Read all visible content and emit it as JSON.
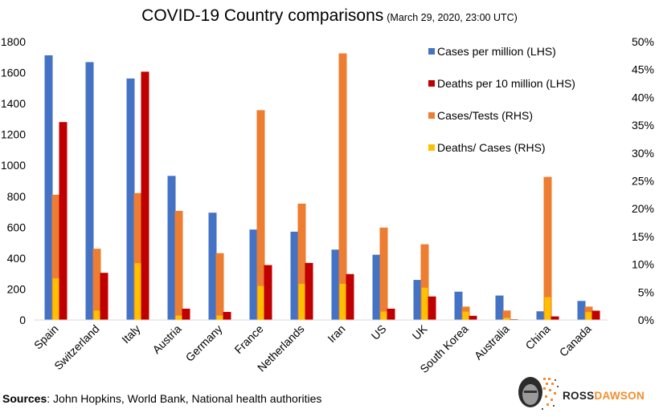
{
  "title": "COVID-19 Country comparisons",
  "subtitle": "(March 29, 2020, 23:00 UTC)",
  "sources": {
    "label": "Sources",
    "text": ": John Hopkins, World Bank, National health authorities"
  },
  "logo": {
    "part1": "ROSS",
    "part2": "DAWSON"
  },
  "colors": {
    "cases_per_million": "#4472c4",
    "deaths_per_10m": "#c00000",
    "cases_tests": "#ed7d31",
    "deaths_cases": "#ffc000",
    "text": "#000000"
  },
  "chart_data": {
    "type": "bar",
    "categories": [
      "Spain",
      "Switzerland",
      "Italy",
      "Austria",
      "Germany",
      "France",
      "Netherlands",
      "Iran",
      "US",
      "UK",
      "South Korea",
      "Australia",
      "China",
      "Canada"
    ],
    "left_axis": {
      "ylim": [
        0,
        1800
      ],
      "ticks": [
        "0",
        "200",
        "400",
        "600",
        "800",
        "1000",
        "1200",
        "1400",
        "1600",
        "1800"
      ]
    },
    "right_axis": {
      "ylim": [
        0,
        50
      ],
      "ticks": [
        "0%",
        "5%",
        "10%",
        "15%",
        "20%",
        "25%",
        "30%",
        "35%",
        "40%",
        "45%",
        "50%"
      ]
    },
    "grid": false,
    "legend_position": "top-right",
    "series": [
      {
        "name": "Cases per million (LHS)",
        "axis": "left",
        "values": [
          1712,
          1668,
          1562,
          932,
          694,
          585,
          571,
          455,
          422,
          259,
          183,
          158,
          56,
          123
        ]
      },
      {
        "name": "Deaths per 10 million (LHS)",
        "axis": "left",
        "values": [
          1280,
          305,
          1606,
          73,
          52,
          355,
          369,
          297,
          73,
          152,
          27,
          5,
          23,
          60
        ]
      },
      {
        "name": "Cases/Tests (RHS)",
        "axis": "right",
        "values": [
          22.5,
          12.8,
          22.8,
          19.6,
          12.0,
          37.7,
          20.9,
          47.9,
          16.6,
          13.6,
          2.4,
          1.7,
          25.7,
          2.4
        ]
      },
      {
        "name": "Deaths/ Cases (RHS)",
        "axis": "right",
        "values": [
          7.5,
          1.7,
          10.2,
          0.8,
          0.8,
          6.1,
          6.5,
          6.5,
          1.5,
          5.8,
          1.5,
          0.4,
          4.1,
          1.4
        ]
      }
    ]
  }
}
